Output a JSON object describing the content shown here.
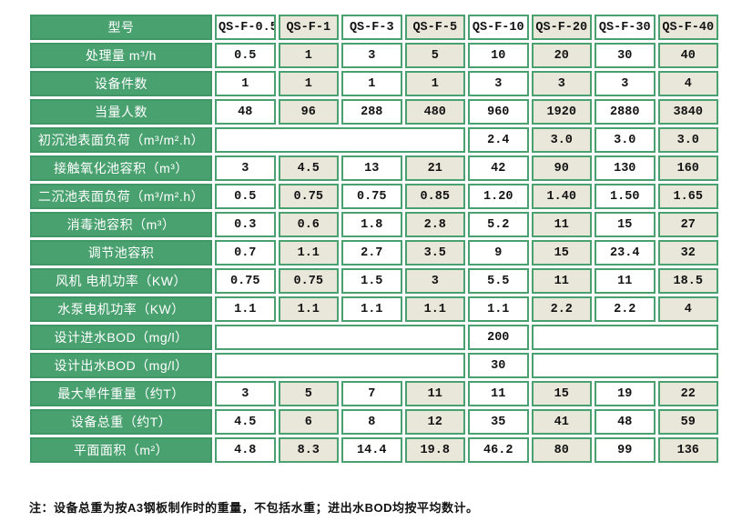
{
  "colors": {
    "label_green": "#4AA170",
    "label_border_green": "#3F9765",
    "grid_green": "#4AA170",
    "alt_cell_beige": "#E9E7DA",
    "cell_white": "#FFFFFF",
    "text_dark": "#121212",
    "text_light": "#FFFFFF"
  },
  "table": {
    "header_label": "型号",
    "models": [
      "QS-F-0.5",
      "QS-F-1",
      "QS-F-3",
      "QS-F-5",
      "QS-F-10",
      "QS-F-20",
      "QS-F-30",
      "QS-F-40"
    ],
    "rows": [
      {
        "label": "处理量 m³/h",
        "cells": [
          {
            "v": "0.5"
          },
          {
            "v": "1"
          },
          {
            "v": "3"
          },
          {
            "v": "5"
          },
          {
            "v": "10"
          },
          {
            "v": "20"
          },
          {
            "v": "30"
          },
          {
            "v": "40"
          }
        ]
      },
      {
        "label": "设备件数",
        "cells": [
          {
            "v": "1"
          },
          {
            "v": "1"
          },
          {
            "v": "1"
          },
          {
            "v": "1"
          },
          {
            "v": "3"
          },
          {
            "v": "3"
          },
          {
            "v": "3"
          },
          {
            "v": "4"
          }
        ]
      },
      {
        "label": "当量人数",
        "cells": [
          {
            "v": "48"
          },
          {
            "v": "96"
          },
          {
            "v": "288"
          },
          {
            "v": "480"
          },
          {
            "v": "960"
          },
          {
            "v": "1920"
          },
          {
            "v": "2880"
          },
          {
            "v": "3840"
          }
        ]
      },
      {
        "label": "初沉池表面负荷（m³/m².h）",
        "cells": [
          {
            "v": "",
            "span": 4
          },
          {
            "v": "2.4"
          },
          {
            "v": "3.0"
          },
          {
            "v": "3.0"
          },
          {
            "v": "3.0"
          }
        ]
      },
      {
        "label": "接触氧化池容积（m³）",
        "cells": [
          {
            "v": "3"
          },
          {
            "v": "4.5"
          },
          {
            "v": "13"
          },
          {
            "v": "21"
          },
          {
            "v": "42"
          },
          {
            "v": "90"
          },
          {
            "v": "130"
          },
          {
            "v": "160"
          }
        ]
      },
      {
        "label": "二沉池表面负荷（m³/m².h）",
        "cells": [
          {
            "v": "0.5"
          },
          {
            "v": "0.75"
          },
          {
            "v": "0.75"
          },
          {
            "v": "0.85"
          },
          {
            "v": "1.20"
          },
          {
            "v": "1.40"
          },
          {
            "v": "1.50"
          },
          {
            "v": "1.65"
          }
        ]
      },
      {
        "label": "消毒池容积（m³）",
        "cells": [
          {
            "v": "0.3"
          },
          {
            "v": "0.6"
          },
          {
            "v": "1.8"
          },
          {
            "v": "2.8"
          },
          {
            "v": "5.2"
          },
          {
            "v": "11"
          },
          {
            "v": "15"
          },
          {
            "v": "27"
          }
        ]
      },
      {
        "label": "调节池容积",
        "cells": [
          {
            "v": "0.7"
          },
          {
            "v": "1.1"
          },
          {
            "v": "2.7"
          },
          {
            "v": "3.5"
          },
          {
            "v": "9"
          },
          {
            "v": "15"
          },
          {
            "v": "23.4"
          },
          {
            "v": "32"
          }
        ]
      },
      {
        "label": "风机 电机功率（KW）",
        "cells": [
          {
            "v": "0.75"
          },
          {
            "v": "0.75"
          },
          {
            "v": "1.5"
          },
          {
            "v": "3"
          },
          {
            "v": "5.5"
          },
          {
            "v": "11"
          },
          {
            "v": "11"
          },
          {
            "v": "18.5"
          }
        ]
      },
      {
        "label": "水泵电机功率（KW）",
        "cells": [
          {
            "v": "1.1"
          },
          {
            "v": "1.1"
          },
          {
            "v": "1.1"
          },
          {
            "v": "1.1"
          },
          {
            "v": "1.1"
          },
          {
            "v": "2.2"
          },
          {
            "v": "2.2"
          },
          {
            "v": "4"
          }
        ]
      },
      {
        "label": "设计进水BOD（mg/l）",
        "cells": [
          {
            "v": "",
            "span": 4
          },
          {
            "v": "200"
          },
          {
            "v": "",
            "span": 3
          }
        ]
      },
      {
        "label": "设计出水BOD（mg/l）",
        "cells": [
          {
            "v": "",
            "span": 4
          },
          {
            "v": "30"
          },
          {
            "v": "",
            "span": 3
          }
        ]
      },
      {
        "label": "最大单件重量（约T）",
        "cells": [
          {
            "v": "3"
          },
          {
            "v": "5"
          },
          {
            "v": "7"
          },
          {
            "v": "11"
          },
          {
            "v": "11"
          },
          {
            "v": "15"
          },
          {
            "v": "19"
          },
          {
            "v": "22"
          }
        ]
      },
      {
        "label": "设备总重（约T）",
        "cells": [
          {
            "v": "4.5"
          },
          {
            "v": "6"
          },
          {
            "v": "8"
          },
          {
            "v": "12"
          },
          {
            "v": "35"
          },
          {
            "v": "41"
          },
          {
            "v": "48"
          },
          {
            "v": "59"
          }
        ]
      },
      {
        "label": "平面面积（m²）",
        "cells": [
          {
            "v": "4.8"
          },
          {
            "v": "8.3"
          },
          {
            "v": "14.4"
          },
          {
            "v": "19.8"
          },
          {
            "v": "46.2"
          },
          {
            "v": "80"
          },
          {
            "v": "99"
          },
          {
            "v": "136"
          }
        ]
      }
    ]
  },
  "note": "注：设备总重为按A3钢板制作时的重量，不包括水重；进出水BOD均按平均数计。"
}
